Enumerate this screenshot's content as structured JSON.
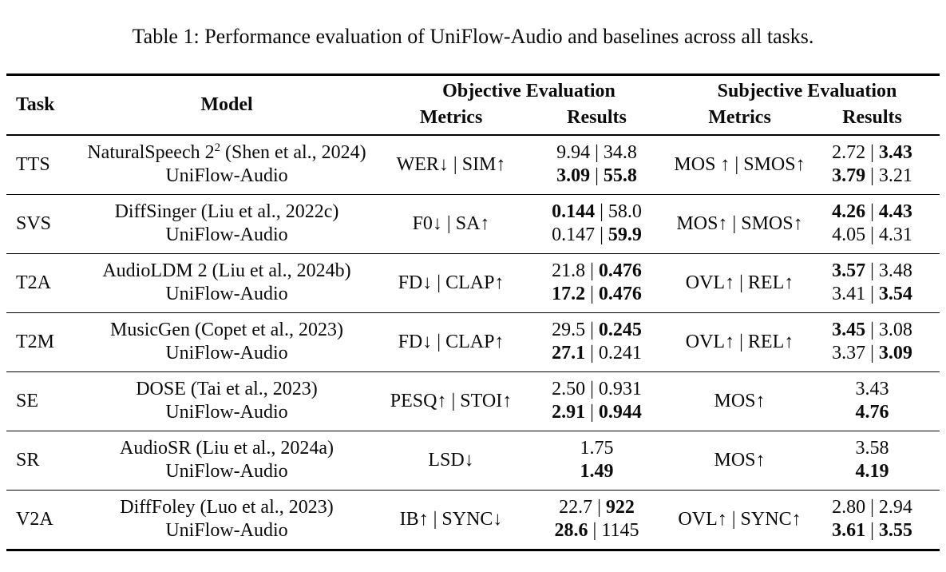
{
  "title": "Table 1: Performance evaluation of UniFlow-Audio and baselines across all tasks.",
  "table": {
    "headers": {
      "task": "Task",
      "model": "Model",
      "objective_group": "Objective Evaluation",
      "subjective_group": "Subjective Evaluation",
      "metrics": "Metrics",
      "results": "Results"
    },
    "rows": [
      {
        "task": "TTS",
        "model_lines": [
          {
            "parts": [
              {
                "text": "NaturalSpeech 2"
              },
              {
                "text": "2",
                "sup": true
              },
              {
                "text": " (Shen et al., 2024)"
              }
            ]
          },
          {
            "parts": [
              {
                "text": "UniFlow-Audio"
              }
            ]
          }
        ],
        "objective_metrics": "WER↓ | SIM↑",
        "objective_results": [
          [
            {
              "text": "9.94"
            },
            {
              "text": "34.8"
            }
          ],
          [
            {
              "text": "3.09",
              "bold": true
            },
            {
              "text": "55.8",
              "bold": true
            }
          ]
        ],
        "subjective_metrics": "MOS ↑ | SMOS↑",
        "subjective_results": [
          [
            {
              "text": "2.72"
            },
            {
              "text": "3.43",
              "bold": true
            }
          ],
          [
            {
              "text": "3.79",
              "bold": true
            },
            {
              "text": "3.21"
            }
          ]
        ]
      },
      {
        "task": "SVS",
        "model_lines": [
          {
            "parts": [
              {
                "text": "DiffSinger (Liu et al., 2022c)"
              }
            ]
          },
          {
            "parts": [
              {
                "text": "UniFlow-Audio"
              }
            ]
          }
        ],
        "objective_metrics": "F0↓ | SA↑",
        "objective_results": [
          [
            {
              "text": "0.144",
              "bold": true
            },
            {
              "text": "58.0"
            }
          ],
          [
            {
              "text": "0.147"
            },
            {
              "text": "59.9",
              "bold": true
            }
          ]
        ],
        "subjective_metrics": "MOS↑ | SMOS↑",
        "subjective_results": [
          [
            {
              "text": "4.26",
              "bold": true
            },
            {
              "text": "4.43",
              "bold": true
            }
          ],
          [
            {
              "text": "4.05"
            },
            {
              "text": "4.31"
            }
          ]
        ]
      },
      {
        "task": "T2A",
        "model_lines": [
          {
            "parts": [
              {
                "text": "AudioLDM 2 (Liu et al., 2024b)"
              }
            ]
          },
          {
            "parts": [
              {
                "text": "UniFlow-Audio"
              }
            ]
          }
        ],
        "objective_metrics": "FD↓ | CLAP↑",
        "objective_results": [
          [
            {
              "text": "21.8"
            },
            {
              "text": "0.476",
              "bold": true
            }
          ],
          [
            {
              "text": "17.2",
              "bold": true
            },
            {
              "text": "0.476",
              "bold": true
            }
          ]
        ],
        "subjective_metrics": "OVL↑ | REL↑",
        "subjective_results": [
          [
            {
              "text": "3.57",
              "bold": true
            },
            {
              "text": "3.48"
            }
          ],
          [
            {
              "text": "3.41"
            },
            {
              "text": "3.54",
              "bold": true
            }
          ]
        ]
      },
      {
        "task": "T2M",
        "model_lines": [
          {
            "parts": [
              {
                "text": "MusicGen (Copet et al., 2023)"
              }
            ]
          },
          {
            "parts": [
              {
                "text": "UniFlow-Audio"
              }
            ]
          }
        ],
        "objective_metrics": "FD↓ | CLAP↑",
        "objective_results": [
          [
            {
              "text": "29.5"
            },
            {
              "text": "0.245",
              "bold": true
            }
          ],
          [
            {
              "text": "27.1",
              "bold": true
            },
            {
              "text": "0.241"
            }
          ]
        ],
        "subjective_metrics": "OVL↑ | REL↑",
        "subjective_results": [
          [
            {
              "text": "3.45",
              "bold": true
            },
            {
              "text": "3.08"
            }
          ],
          [
            {
              "text": "3.37"
            },
            {
              "text": "3.09",
              "bold": true
            }
          ]
        ]
      },
      {
        "task": "SE",
        "model_lines": [
          {
            "parts": [
              {
                "text": "DOSE (Tai et al., 2023)"
              }
            ]
          },
          {
            "parts": [
              {
                "text": "UniFlow-Audio"
              }
            ]
          }
        ],
        "objective_metrics": "PESQ↑ | STOI↑",
        "objective_results": [
          [
            {
              "text": "2.50"
            },
            {
              "text": "0.931"
            }
          ],
          [
            {
              "text": "2.91",
              "bold": true
            },
            {
              "text": "0.944",
              "bold": true
            }
          ]
        ],
        "subjective_metrics": "MOS↑",
        "subjective_results": [
          [
            {
              "text": "3.43"
            }
          ],
          [
            {
              "text": "4.76",
              "bold": true
            }
          ]
        ]
      },
      {
        "task": "SR",
        "model_lines": [
          {
            "parts": [
              {
                "text": "AudioSR (Liu et al., 2024a)"
              }
            ]
          },
          {
            "parts": [
              {
                "text": "UniFlow-Audio"
              }
            ]
          }
        ],
        "objective_metrics": "LSD↓",
        "objective_results": [
          [
            {
              "text": "1.75"
            }
          ],
          [
            {
              "text": "1.49",
              "bold": true
            }
          ]
        ],
        "subjective_metrics": "MOS↑",
        "subjective_results": [
          [
            {
              "text": "3.58"
            }
          ],
          [
            {
              "text": "4.19",
              "bold": true
            }
          ]
        ]
      },
      {
        "task": "V2A",
        "model_lines": [
          {
            "parts": [
              {
                "text": "DiffFoley (Luo et al., 2023)"
              }
            ]
          },
          {
            "parts": [
              {
                "text": "UniFlow-Audio"
              }
            ]
          }
        ],
        "objective_metrics": "IB↑ | SYNC↓",
        "objective_results": [
          [
            {
              "text": "22.7"
            },
            {
              "text": "922",
              "bold": true
            }
          ],
          [
            {
              "text": "28.6",
              "bold": true
            },
            {
              "text": "1145"
            }
          ]
        ],
        "subjective_metrics": "OVL↑ | SYNC↑",
        "subjective_results": [
          [
            {
              "text": "2.80"
            },
            {
              "text": "2.94"
            }
          ],
          [
            {
              "text": "3.61",
              "bold": true
            },
            {
              "text": "3.55",
              "bold": true
            }
          ]
        ]
      }
    ]
  }
}
